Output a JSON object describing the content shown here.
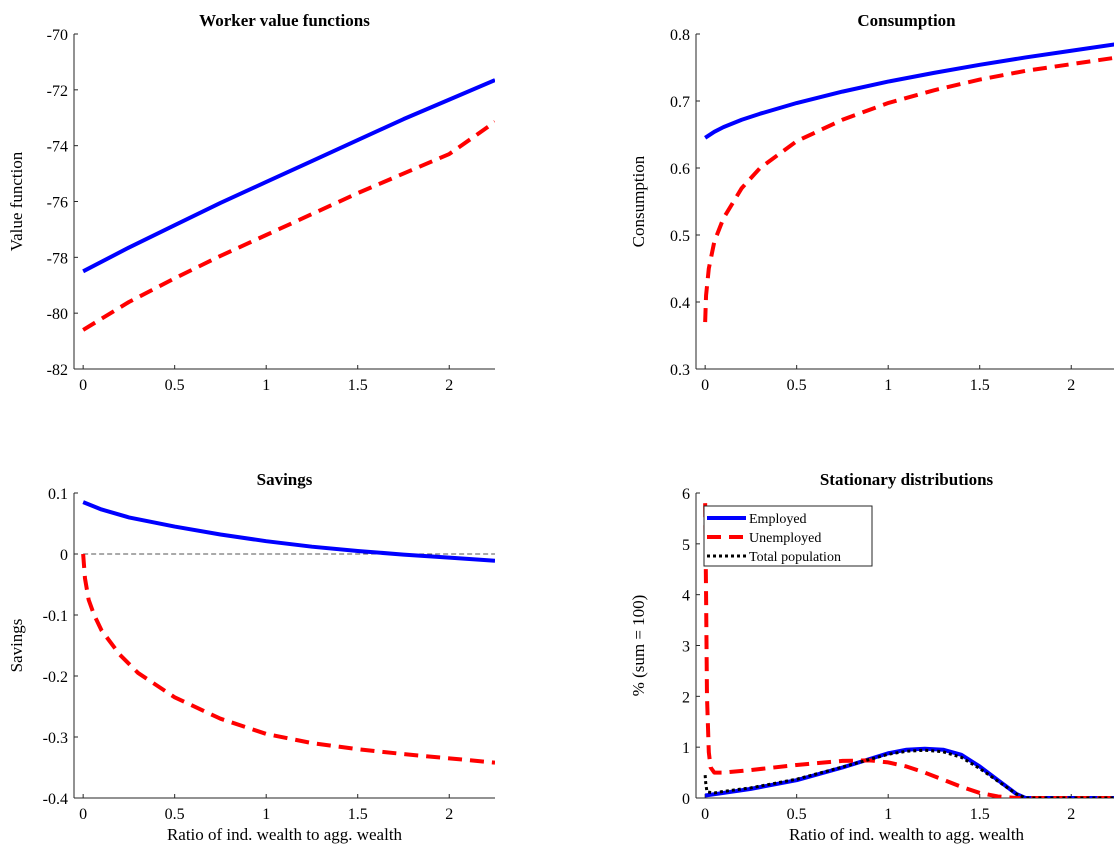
{
  "chart_data": [
    {
      "type": "line",
      "title": "Worker value functions",
      "xlabel": "",
      "ylabel": "Value function",
      "xlim": [
        -0.05,
        2.25
      ],
      "ylim": [
        -82,
        -70
      ],
      "xticks": [
        0,
        0.5,
        1,
        1.5,
        2
      ],
      "xtick_labels": [
        "0",
        "0.5",
        "1",
        "1.5",
        "2"
      ],
      "yticks": [
        -82,
        -80,
        -78,
        -76,
        -74,
        -72,
        -70
      ],
      "ytick_labels": [
        "-82",
        "-80",
        "-78",
        "-76",
        "-74",
        "-72",
        "-70"
      ],
      "grid": false,
      "series": [
        {
          "color": "#0000ff",
          "dash": "solid",
          "x": [
            0,
            0.25,
            0.5,
            0.75,
            1,
            1.25,
            1.5,
            1.75,
            2,
            2.25
          ],
          "y": [
            -78.5,
            -77.65,
            -76.85,
            -76.05,
            -75.3,
            -74.55,
            -73.8,
            -73.05,
            -72.35,
            -71.65
          ]
        },
        {
          "color": "#ff0000",
          "dash": "dashed",
          "x": [
            0,
            0.25,
            0.5,
            0.75,
            1,
            1.25,
            1.5,
            1.75,
            2,
            2.25
          ],
          "y": [
            -80.6,
            -79.6,
            -78.75,
            -77.95,
            -77.2,
            -76.45,
            -75.7,
            -75.0,
            -74.3,
            -73.15
          ]
        }
      ]
    },
    {
      "type": "line",
      "title": "Consumption",
      "xlabel": "",
      "ylabel": "Consumption",
      "xlim": [
        -0.05,
        2.25
      ],
      "ylim": [
        0.3,
        0.8
      ],
      "xticks": [
        0,
        0.5,
        1,
        1.5,
        2
      ],
      "xtick_labels": [
        "0",
        "0.5",
        "1",
        "1.5",
        "2"
      ],
      "yticks": [
        0.3,
        0.4,
        0.5,
        0.6,
        0.7,
        0.8
      ],
      "ytick_labels": [
        "0.3",
        "0.4",
        "0.5",
        "0.6",
        "0.7",
        "0.8"
      ],
      "grid": false,
      "series": [
        {
          "color": "#0000ff",
          "dash": "solid",
          "x": [
            0,
            0.05,
            0.1,
            0.2,
            0.3,
            0.5,
            0.75,
            1,
            1.25,
            1.5,
            1.75,
            2,
            2.25
          ],
          "y": [
            0.645,
            0.654,
            0.661,
            0.672,
            0.681,
            0.697,
            0.714,
            0.729,
            0.742,
            0.754,
            0.765,
            0.775,
            0.785
          ]
        },
        {
          "color": "#ff0000",
          "dash": "dashed",
          "x": [
            0,
            0.005,
            0.02,
            0.05,
            0.1,
            0.2,
            0.3,
            0.5,
            0.75,
            1,
            1.25,
            1.5,
            1.75,
            2,
            2.25
          ],
          "y": [
            0.37,
            0.41,
            0.45,
            0.49,
            0.525,
            0.57,
            0.6,
            0.64,
            0.672,
            0.697,
            0.716,
            0.732,
            0.745,
            0.755,
            0.765
          ]
        }
      ]
    },
    {
      "type": "line",
      "title": "Savings",
      "xlabel": "Ratio of ind. wealth to agg. wealth",
      "ylabel": "Savings",
      "xlim": [
        -0.05,
        2.25
      ],
      "ylim": [
        -0.4,
        0.1
      ],
      "xticks": [
        0,
        0.5,
        1,
        1.5,
        2
      ],
      "xtick_labels": [
        "0",
        "0.5",
        "1",
        "1.5",
        "2"
      ],
      "yticks": [
        -0.4,
        -0.3,
        -0.2,
        -0.1,
        0,
        0.1
      ],
      "ytick_labels": [
        "-0.4",
        "-0.3",
        "-0.2",
        "-0.1",
        "0",
        "0.1"
      ],
      "grid": false,
      "reference_line": {
        "y": 0,
        "color": "#555555",
        "dash": "dashed"
      },
      "series": [
        {
          "color": "#0000ff",
          "dash": "solid",
          "x": [
            0,
            0.1,
            0.25,
            0.5,
            0.75,
            1,
            1.25,
            1.5,
            1.75,
            2,
            2.25
          ],
          "y": [
            0.085,
            0.073,
            0.06,
            0.045,
            0.032,
            0.021,
            0.012,
            0.005,
            -0.001,
            -0.006,
            -0.011
          ]
        },
        {
          "color": "#ff0000",
          "dash": "dashed",
          "x": [
            0,
            0.01,
            0.03,
            0.06,
            0.1,
            0.2,
            0.3,
            0.5,
            0.75,
            1,
            1.25,
            1.5,
            1.75,
            2,
            2.25
          ],
          "y": [
            0,
            -0.04,
            -0.075,
            -0.1,
            -0.125,
            -0.165,
            -0.195,
            -0.235,
            -0.27,
            -0.295,
            -0.31,
            -0.32,
            -0.328,
            -0.335,
            -0.342
          ]
        }
      ]
    },
    {
      "type": "line",
      "title": "Stationary distributions",
      "xlabel": "Ratio of ind. wealth to agg. wealth",
      "ylabel": "% (sum = 100)",
      "xlim": [
        -0.05,
        2.25
      ],
      "ylim": [
        0,
        6
      ],
      "xticks": [
        0,
        0.5,
        1,
        1.5,
        2
      ],
      "xtick_labels": [
        "0",
        "0.5",
        "1",
        "1.5",
        "2"
      ],
      "yticks": [
        0,
        1,
        2,
        3,
        4,
        5,
        6
      ],
      "ytick_labels": [
        "0",
        "1",
        "2",
        "3",
        "4",
        "5",
        "6"
      ],
      "grid": false,
      "legend_position": "top-left",
      "series": [
        {
          "name": "Employed",
          "color": "#0000ff",
          "dash": "solid",
          "x": [
            0,
            0.1,
            0.25,
            0.5,
            0.75,
            1,
            1.1,
            1.2,
            1.3,
            1.4,
            1.5,
            1.6,
            1.7,
            1.75,
            2,
            2.25
          ],
          "y": [
            0.05,
            0.1,
            0.18,
            0.35,
            0.6,
            0.88,
            0.95,
            0.97,
            0.95,
            0.85,
            0.62,
            0.35,
            0.08,
            0.0,
            0.0,
            0.0
          ]
        },
        {
          "name": "Unemployed",
          "color": "#ff0000",
          "dash": "dashed",
          "x": [
            0,
            0.005,
            0.01,
            0.02,
            0.03,
            0.05,
            0.1,
            0.25,
            0.5,
            0.75,
            0.9,
            1,
            1.1,
            1.2,
            1.3,
            1.4,
            1.5,
            1.6,
            1.7,
            1.75,
            2,
            2.25
          ],
          "y": [
            5.8,
            4.0,
            2.0,
            0.9,
            0.6,
            0.5,
            0.5,
            0.55,
            0.65,
            0.73,
            0.74,
            0.7,
            0.62,
            0.5,
            0.36,
            0.22,
            0.1,
            0.03,
            0.0,
            0.0,
            0.0,
            0.0
          ]
        },
        {
          "name": "Total population",
          "color": "#000000",
          "dash": "dotted",
          "x": [
            0,
            0.003,
            0.01,
            0.05,
            0.1,
            0.25,
            0.5,
            0.75,
            1,
            1.1,
            1.2,
            1.3,
            1.4,
            1.5,
            1.6,
            1.7,
            1.75,
            2,
            2.25
          ],
          "y": [
            0.45,
            0.3,
            0.12,
            0.1,
            0.13,
            0.2,
            0.37,
            0.61,
            0.86,
            0.92,
            0.94,
            0.91,
            0.8,
            0.58,
            0.33,
            0.08,
            0.0,
            0.0,
            0.0
          ]
        }
      ]
    }
  ]
}
